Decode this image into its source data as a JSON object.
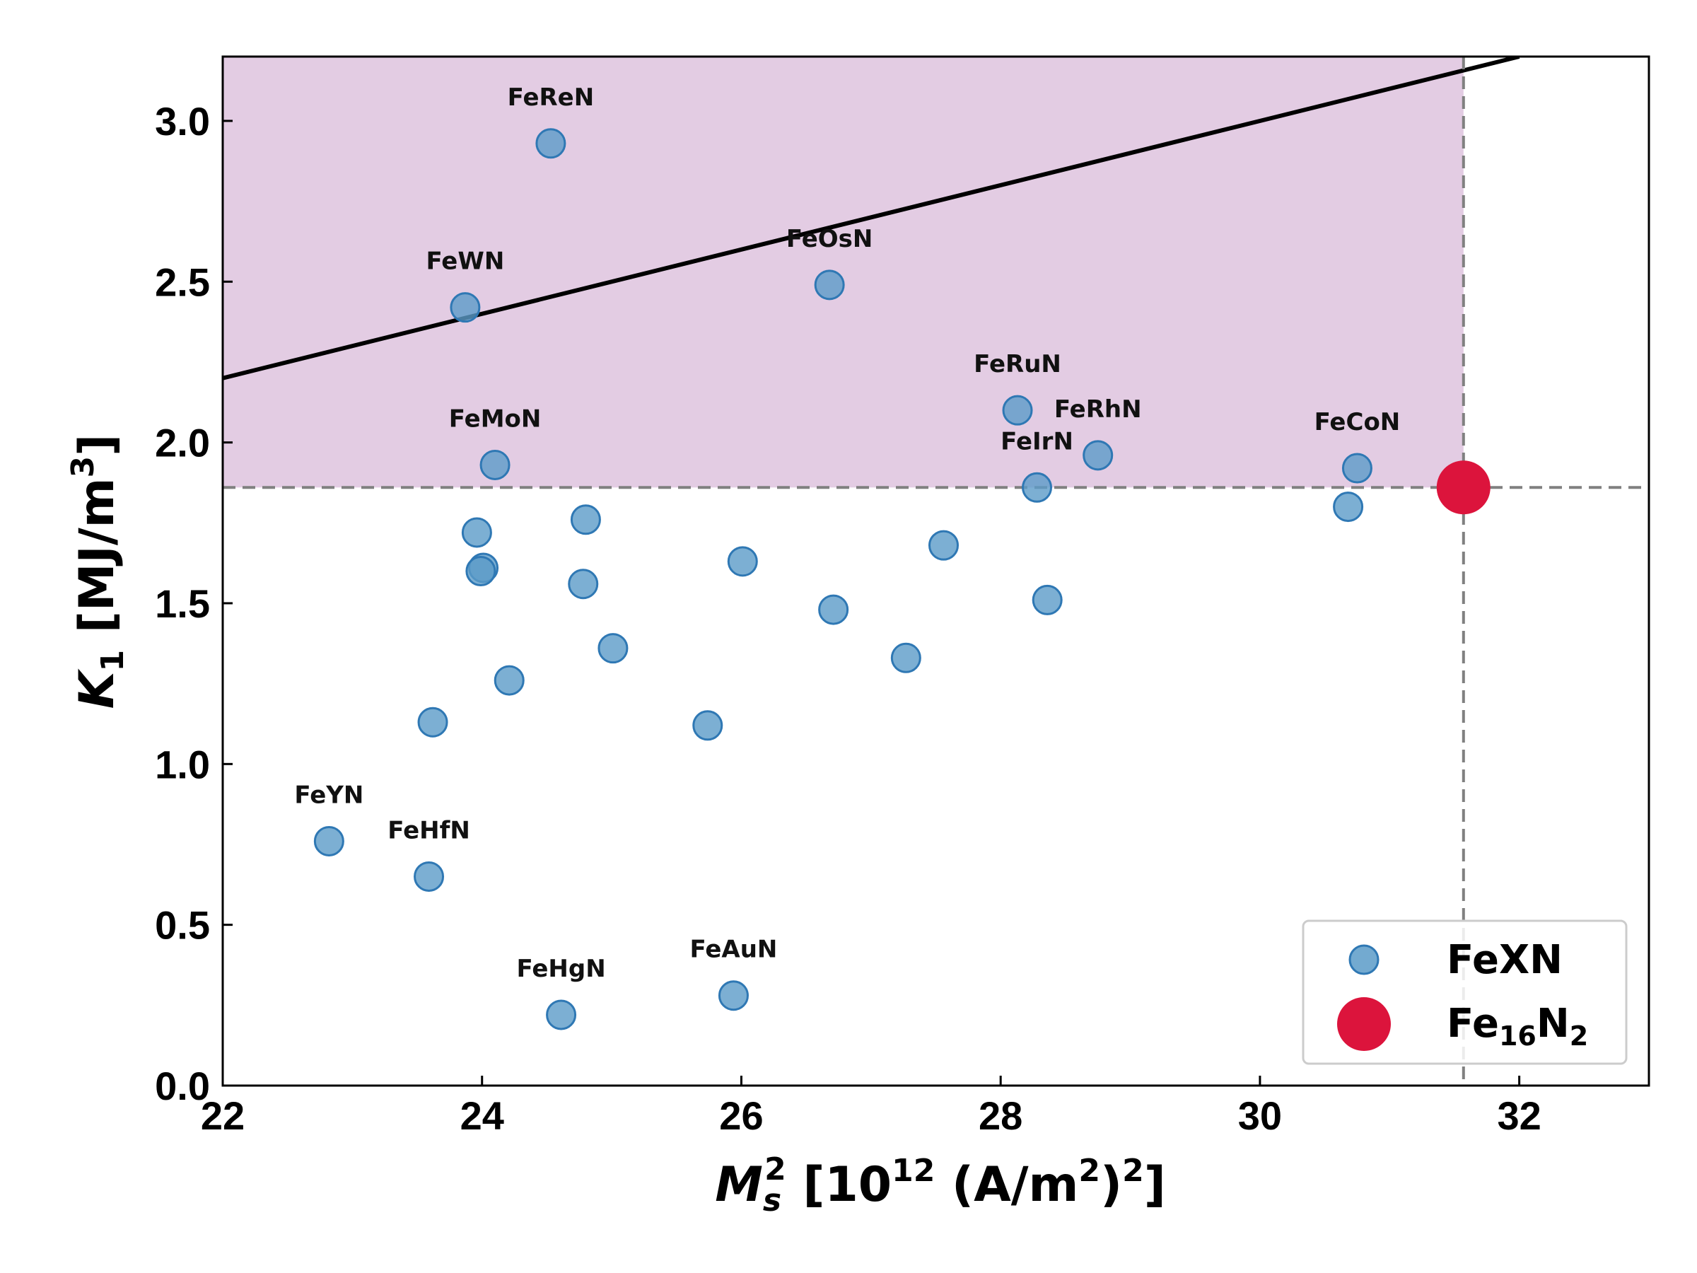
{
  "chart_data": {
    "type": "scatter",
    "xlabel": {
      "base": "M",
      "sub": "s",
      "sup": "2",
      "rest": " [10",
      "exp": "12",
      "unit": " (A/m",
      "unit_sup": "2",
      "close": ")",
      "close_sup": "2",
      "end": "]"
    },
    "ylabel": {
      "base": "K",
      "sub": "1",
      "rest": " [MJ/m",
      "sup": "3",
      "end": "]"
    },
    "xlim": [
      22,
      33
    ],
    "ylim": [
      0,
      3.2
    ],
    "xticks": [
      22,
      24,
      26,
      28,
      30,
      32
    ],
    "xtick_labels": [
      "22",
      "24",
      "26",
      "28",
      "30",
      "32"
    ],
    "yticks": [
      0.0,
      0.5,
      1.0,
      1.5,
      2.0,
      2.5,
      3.0
    ],
    "ytick_labels": [
      "0.0",
      "0.5",
      "1.0",
      "1.5",
      "2.0",
      "2.5",
      "3.0"
    ],
    "grid": false,
    "reference": {
      "x": 31.57,
      "y": 1.86
    },
    "shaded_region": {
      "x_max": 31.57,
      "y_min": 1.86,
      "color": "#e3cce3"
    },
    "trend_line": {
      "x": [
        22,
        32
      ],
      "y": [
        2.2,
        3.2
      ],
      "color": "#000000"
    },
    "series": [
      {
        "name": "FeXN",
        "color": "#5b9bc8",
        "points": [
          {
            "x": 24.53,
            "y": 2.93,
            "label": "FeReN"
          },
          {
            "x": 23.87,
            "y": 2.42,
            "label": "FeWN"
          },
          {
            "x": 26.68,
            "y": 2.49,
            "label": "FeOsN"
          },
          {
            "x": 24.1,
            "y": 1.93,
            "label": "FeMoN"
          },
          {
            "x": 28.13,
            "y": 2.1,
            "label": "FeRuN"
          },
          {
            "x": 28.75,
            "y": 1.96,
            "label": "FeRhN"
          },
          {
            "x": 28.28,
            "y": 1.86,
            "label": "FeIrN"
          },
          {
            "x": 30.75,
            "y": 1.92,
            "label": "FeCoN"
          },
          {
            "x": 30.68,
            "y": 1.8
          },
          {
            "x": 23.96,
            "y": 1.72
          },
          {
            "x": 24.01,
            "y": 1.61
          },
          {
            "x": 23.99,
            "y": 1.6
          },
          {
            "x": 24.8,
            "y": 1.76
          },
          {
            "x": 24.78,
            "y": 1.56
          },
          {
            "x": 25.01,
            "y": 1.36
          },
          {
            "x": 24.21,
            "y": 1.26
          },
          {
            "x": 23.62,
            "y": 1.13
          },
          {
            "x": 25.74,
            "y": 1.12
          },
          {
            "x": 26.01,
            "y": 1.63
          },
          {
            "x": 26.71,
            "y": 1.48
          },
          {
            "x": 27.27,
            "y": 1.33
          },
          {
            "x": 27.56,
            "y": 1.68
          },
          {
            "x": 28.36,
            "y": 1.51
          },
          {
            "x": 22.82,
            "y": 0.76,
            "label": "FeYN"
          },
          {
            "x": 23.59,
            "y": 0.65,
            "label": "FeHfN"
          },
          {
            "x": 24.61,
            "y": 0.22,
            "label": "FeHgN"
          },
          {
            "x": 25.94,
            "y": 0.28,
            "label": "FeAuN"
          }
        ]
      },
      {
        "name": "Fe16N2",
        "color": "#dc143c",
        "points": [
          {
            "x": 31.57,
            "y": 1.86
          }
        ]
      }
    ],
    "legend": {
      "position": "bottom-right",
      "entries": [
        {
          "base": "FeXN",
          "color": "#5b9bc8"
        },
        {
          "base": "Fe",
          "sub1": "16",
          "mid": "N",
          "sub2": "2",
          "color": "#dc143c"
        }
      ]
    }
  }
}
